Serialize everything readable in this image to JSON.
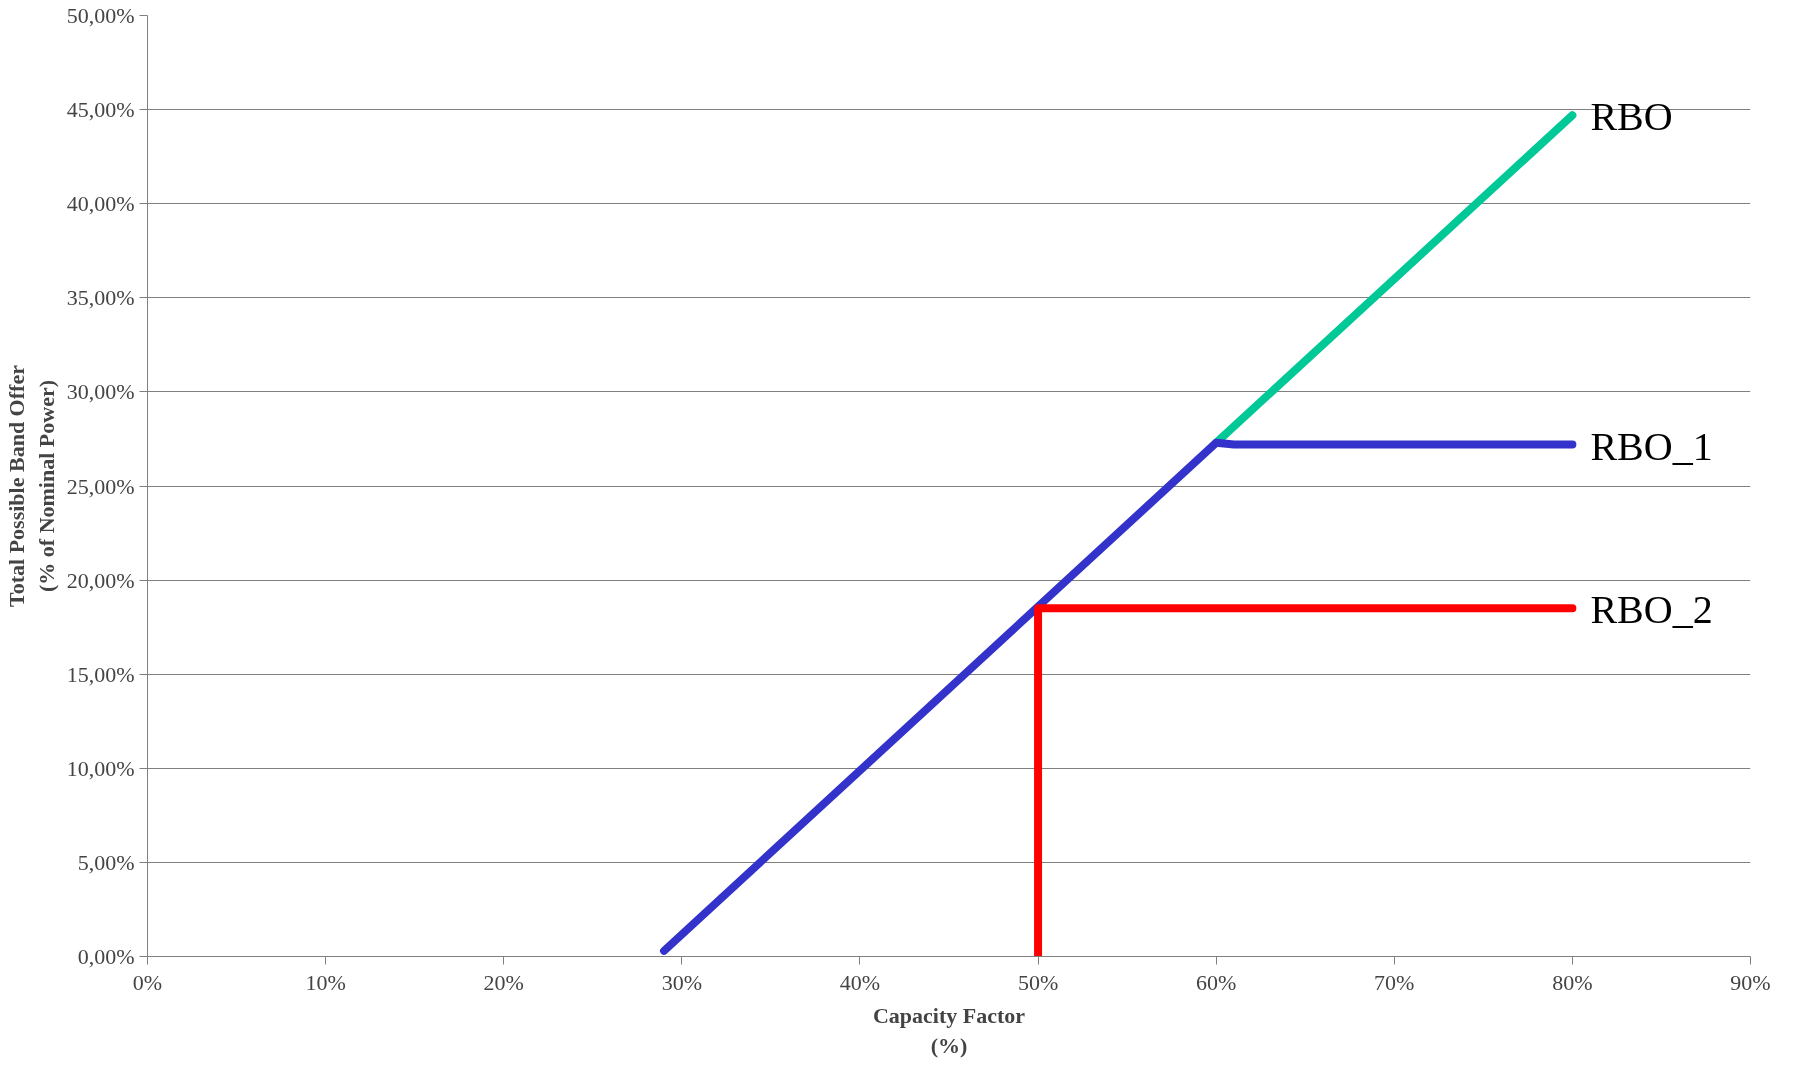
{
  "chart_data": {
    "type": "line",
    "xlabel": "Capacity Factor\n(%)",
    "ylabel": "Total Possible Band Offer\n(% of Nominal Power)",
    "xlim": [
      0,
      90
    ],
    "ylim": [
      0,
      50
    ],
    "xticks": [
      {
        "value": 0,
        "label": "0%"
      },
      {
        "value": 10,
        "label": "10%"
      },
      {
        "value": 20,
        "label": "20%"
      },
      {
        "value": 30,
        "label": "30%"
      },
      {
        "value": 40,
        "label": "40%"
      },
      {
        "value": 50,
        "label": "50%"
      },
      {
        "value": 60,
        "label": "60%"
      },
      {
        "value": 70,
        "label": "70%"
      },
      {
        "value": 80,
        "label": "80%"
      },
      {
        "value": 90,
        "label": "90%"
      }
    ],
    "yticks": [
      {
        "value": 0,
        "label": "0,00%"
      },
      {
        "value": 5,
        "label": "5,00%"
      },
      {
        "value": 10,
        "label": "10,00%"
      },
      {
        "value": 15,
        "label": "15,00%"
      },
      {
        "value": 20,
        "label": "20,00%"
      },
      {
        "value": 25,
        "label": "25,00%"
      },
      {
        "value": 30,
        "label": "30,00%"
      },
      {
        "value": 35,
        "label": "35,00%"
      },
      {
        "value": 40,
        "label": "40,00%"
      },
      {
        "value": 45,
        "label": "45,00%"
      },
      {
        "value": 50,
        "label": "50,00%"
      }
    ],
    "grid": "y",
    "marker": "none",
    "line_style": "solid",
    "series": [
      {
        "name": "RBO",
        "color": "#00c896",
        "x": [
          60,
          80
        ],
        "values": [
          27.3,
          44.7
        ]
      },
      {
        "name": "RBO_1",
        "color": "#3333cc",
        "x": [
          29,
          60,
          61,
          80
        ],
        "values": [
          0.3,
          27.3,
          27.2,
          27.2
        ]
      },
      {
        "name": "RBO_2",
        "color": "#ff0000",
        "x": [
          50,
          50,
          80
        ],
        "values": [
          0,
          18.5,
          18.5
        ]
      }
    ]
  }
}
